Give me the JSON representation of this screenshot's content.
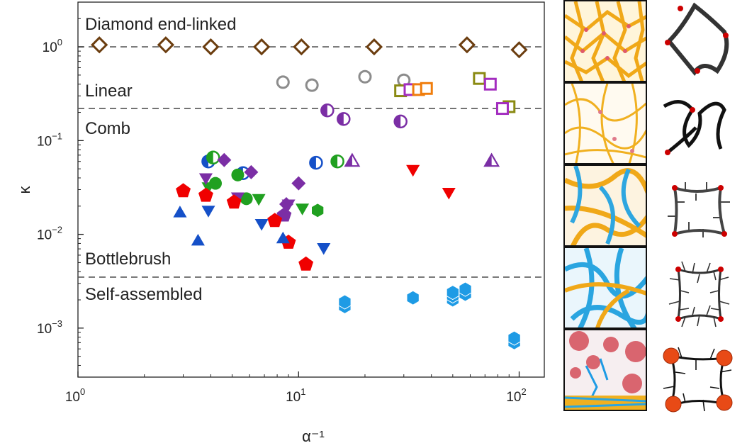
{
  "chart_data": {
    "type": "scatter",
    "xlabel": "α⁻¹",
    "ylabel": "κ",
    "xscale": "log",
    "yscale": "log",
    "xlim": [
      1,
      130
    ],
    "ylim": [
      0.0003,
      3
    ],
    "x_ticks": [
      {
        "value": 1,
        "base": "10",
        "exp": "0"
      },
      {
        "value": 10,
        "base": "10",
        "exp": "1"
      },
      {
        "value": 100,
        "base": "10",
        "exp": "2"
      }
    ],
    "y_ticks": [
      {
        "value": 1,
        "base": "10",
        "exp": "0"
      },
      {
        "value": 0.1,
        "base": "10",
        "exp": "−1"
      },
      {
        "value": 0.01,
        "base": "10",
        "exp": "−2"
      },
      {
        "value": 0.001,
        "base": "10",
        "exp": "−3"
      }
    ],
    "reference_lines": [
      {
        "y": 1.0
      },
      {
        "y": 0.22
      },
      {
        "y": 0.0035
      }
    ],
    "region_labels": [
      {
        "text": "Diamond end-linked",
        "y": 1.75
      },
      {
        "text": "Linear",
        "y": 0.34
      },
      {
        "text": "Comb",
        "y": 0.135
      },
      {
        "text": "Bottlebrush",
        "y": 0.0055
      },
      {
        "text": "Self-assembled",
        "y": 0.0023
      }
    ],
    "series": [
      {
        "marker": "diamond-open",
        "color": "#6b3d0f",
        "points": [
          [
            1.25,
            1.05
          ],
          [
            2.5,
            1.05
          ],
          [
            4.0,
            1.0
          ],
          [
            6.8,
            1.0
          ],
          [
            10.3,
            1.0
          ],
          [
            22,
            1.0
          ],
          [
            58,
            1.05
          ],
          [
            100,
            0.93
          ]
        ]
      },
      {
        "marker": "circle-open",
        "color": "#8c8c8c",
        "points": [
          [
            8.5,
            0.42
          ],
          [
            11.5,
            0.39
          ],
          [
            20,
            0.48
          ],
          [
            30,
            0.44
          ]
        ]
      },
      {
        "marker": "square-open",
        "color": "#8a8a12",
        "points": [
          [
            29,
            0.34
          ],
          [
            66,
            0.46
          ],
          [
            90,
            0.23
          ]
        ]
      },
      {
        "marker": "square-open",
        "color": "#a32dbf",
        "points": [
          [
            32,
            0.35
          ],
          [
            74,
            0.4
          ],
          [
            84,
            0.22
          ]
        ]
      },
      {
        "marker": "square-open",
        "color": "#f07d0c",
        "points": [
          [
            35,
            0.35
          ],
          [
            38,
            0.36
          ]
        ]
      },
      {
        "marker": "circle-half",
        "color": "#7b2ea5",
        "points": [
          [
            13.5,
            0.21
          ],
          [
            16,
            0.17
          ],
          [
            29,
            0.16
          ]
        ]
      },
      {
        "marker": "circle-half",
        "color": "#1550c8",
        "points": [
          [
            3.9,
            0.06
          ],
          [
            5.6,
            0.045
          ],
          [
            12,
            0.058
          ]
        ]
      },
      {
        "marker": "circle-half",
        "color": "#20a020",
        "points": [
          [
            4.1,
            0.066
          ],
          [
            15,
            0.06
          ]
        ]
      },
      {
        "marker": "triangle-half",
        "color": "#7b2ea5",
        "points": [
          [
            17.5,
            0.06
          ],
          [
            75,
            0.06
          ]
        ]
      },
      {
        "marker": "diamond",
        "color": "#7b2ea5",
        "points": [
          [
            4.6,
            0.062
          ],
          [
            6.1,
            0.046
          ],
          [
            8.8,
            0.021
          ],
          [
            10.0,
            0.035
          ]
        ]
      },
      {
        "marker": "circle",
        "color": "#20a020",
        "points": [
          [
            4.2,
            0.035
          ],
          [
            5.3,
            0.043
          ],
          [
            5.8,
            0.024
          ]
        ]
      },
      {
        "marker": "triangle-down",
        "color": "#20a020",
        "points": [
          [
            3.9,
            0.032
          ],
          [
            6.6,
            0.024
          ],
          [
            10.4,
            0.019
          ]
        ]
      },
      {
        "marker": "triangle-down",
        "color": "#7b2ea5",
        "points": [
          [
            3.8,
            0.04
          ],
          [
            5.3,
            0.025
          ],
          [
            9.0,
            0.021
          ]
        ]
      },
      {
        "marker": "pentagon",
        "color": "#7b2ea5",
        "points": [
          [
            8.6,
            0.016
          ]
        ]
      },
      {
        "marker": "hexagon",
        "color": "#20a020",
        "points": [
          [
            12.2,
            0.018
          ]
        ]
      },
      {
        "marker": "pentagon",
        "color": "#f00000",
        "points": [
          [
            3.0,
            0.029
          ],
          [
            3.8,
            0.026
          ],
          [
            5.1,
            0.022
          ],
          [
            7.8,
            0.014
          ],
          [
            9.0,
            0.0082
          ],
          [
            10.8,
            0.0048
          ]
        ]
      },
      {
        "marker": "triangle-down",
        "color": "#f00000",
        "points": [
          [
            33,
            0.049
          ],
          [
            48,
            0.028
          ]
        ]
      },
      {
        "marker": "triangle-up",
        "color": "#1550c8",
        "points": [
          [
            2.9,
            0.017
          ],
          [
            3.5,
            0.0085
          ],
          [
            8.5,
            0.009
          ]
        ]
      },
      {
        "marker": "triangle-down",
        "color": "#1550c8",
        "points": [
          [
            3.9,
            0.018
          ],
          [
            6.8,
            0.013
          ],
          [
            13,
            0.0072
          ]
        ]
      },
      {
        "marker": "hexagon",
        "color": "#1e9be5",
        "points": [
          [
            16.2,
            0.0017
          ],
          [
            16.2,
            0.0019
          ],
          [
            33,
            0.0021
          ],
          [
            50,
            0.002
          ],
          [
            50,
            0.0022
          ],
          [
            50,
            0.0024
          ],
          [
            57,
            0.0023
          ],
          [
            57,
            0.0026
          ],
          [
            95,
            0.0007
          ],
          [
            95,
            0.00078
          ]
        ]
      }
    ]
  },
  "colors": {
    "brown": "#6b3d0f",
    "grey": "#8c8c8c",
    "olive": "#8a8a12",
    "purple": "#7b2ea5",
    "magenta": "#a32dbf",
    "orange": "#f07d0c",
    "blue": "#1550c8",
    "green": "#20a020",
    "red": "#f00000",
    "cyan": "#1e9be5"
  },
  "panels": [
    {
      "name": "diamond-end-linked-snapshot",
      "bg": "#f4b21c",
      "accent": "#e0a000"
    },
    {
      "name": "linear-snapshot",
      "bg": "#f7d89a",
      "accent": "#e0a000"
    },
    {
      "name": "comb-snapshot",
      "bg": "#f6c15a",
      "accent": "#2ea6e0"
    },
    {
      "name": "bottlebrush-snapshot",
      "bg": "#7ccbef",
      "accent": "#e0a000"
    },
    {
      "name": "self-assembled-snapshot",
      "bg": "#f5e7ea",
      "accent": "#d23c4a"
    }
  ]
}
